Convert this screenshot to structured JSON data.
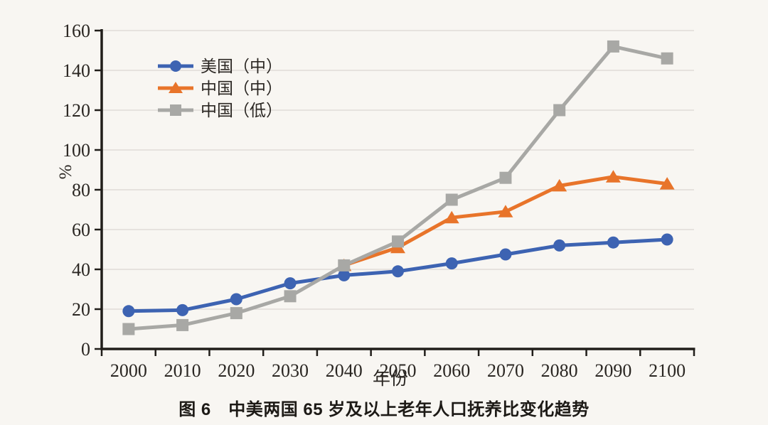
{
  "chart_data": {
    "type": "line",
    "title": "图 6　中美两国 65 岁及以上老年人口抚养比变化趋势",
    "xlabel": "年份",
    "ylabel": "%",
    "ylim": [
      0,
      160
    ],
    "ytick_step": 20,
    "grid": "horizontal",
    "legend_position": "upper-left-inside",
    "categories": [
      "2000",
      "2010",
      "2020",
      "2030",
      "2040",
      "2050",
      "2060",
      "2070",
      "2080",
      "2090",
      "2100"
    ],
    "series": [
      {
        "name": "美国（中）",
        "slug": "us-medium",
        "color": "#3d63b2",
        "marker": "circle",
        "start_index": 0,
        "values": [
          19,
          19.5,
          25,
          33,
          37,
          39,
          43,
          47.5,
          52,
          53.5,
          55
        ]
      },
      {
        "name": "中国（中）",
        "slug": "china-medium",
        "color": "#e8742a",
        "marker": "triangle",
        "start_index": 4,
        "values": [
          42,
          51,
          66,
          69,
          82,
          86.5,
          83
        ]
      },
      {
        "name": "中国（低）",
        "slug": "china-low",
        "color": "#a8a8a5",
        "marker": "square",
        "start_index": 0,
        "values": [
          10,
          12,
          18,
          26.5,
          42,
          54,
          75,
          86,
          120,
          152,
          146
        ]
      }
    ]
  },
  "colors": {
    "background": "#f8f6f2",
    "gridline": "#dad7d3",
    "axis": "#211e1a"
  }
}
